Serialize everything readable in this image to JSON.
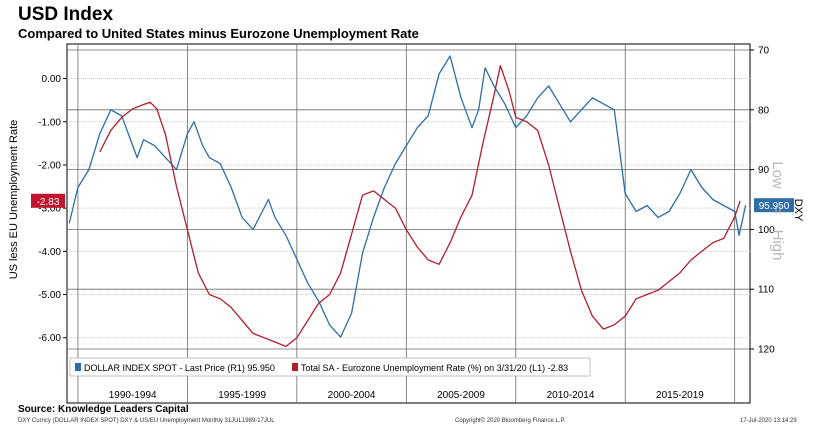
{
  "header": {
    "title": "USD Index",
    "subtitle": "Compared to United States minus Eurozone Unemployment Rate"
  },
  "footer": {
    "source": "Source: Knowledge Leaders Capital",
    "meta_left": "DXY Curncy (DOLLAR INDEX SPOT) DXY & US/EU Unemployment  Monthly 31JUL1989-17JUL",
    "meta_center": "Copyright© 2020 Bloomberg Finance L.P.",
    "meta_right": "17-Jul-2020 13:14:29"
  },
  "chart_data": {
    "type": "line",
    "xlabel": "",
    "x_periods": [
      "1990-1994",
      "1995-1999",
      "2000-2004",
      "2005-2009",
      "2010-2014",
      "2015-2019"
    ],
    "xlim": [
      1989.5,
      2020.7
    ],
    "left_axis": {
      "label": "US less EU Unemployment Rate",
      "ylim": [
        -6.4,
        0.8
      ],
      "ticks": [
        "0.00",
        "-1.00",
        "-2.00",
        "-3.00",
        "-4.00",
        "-5.00",
        "-6.00"
      ],
      "last_value_label": "-2.83",
      "last_value": -2.83,
      "marker_color": "#c0152f"
    },
    "right_axis": {
      "label": "DXY",
      "inverted": true,
      "ylim": [
        69,
        121
      ],
      "ticks": [
        "70",
        "80",
        "90",
        "100",
        "110",
        "120"
      ],
      "last_value_label": "95.950",
      "last_value": 95.95,
      "marker_color": "#2e6ea6",
      "annotation_low": "Low",
      "annotation_high": "High",
      "annotation_separator": "="
    },
    "grid": true,
    "legend_position": "bottom-left",
    "series": [
      {
        "name": "DOLLAR INDEX SPOT - Last Price (R1) 95.950",
        "axis": "right",
        "color": "#2e6ea6",
        "x": [
          1989.6,
          1990.0,
          1990.5,
          1991.0,
          1991.5,
          1992.0,
          1992.7,
          1993.0,
          1993.5,
          1994.0,
          1994.5,
          1995.0,
          1995.3,
          1995.7,
          1996.0,
          1996.5,
          1997.0,
          1997.5,
          1998.0,
          1998.7,
          1999.0,
          1999.5,
          2000.0,
          2000.5,
          2001.0,
          2001.5,
          2002.0,
          2002.5,
          2003.0,
          2003.5,
          2004.0,
          2004.5,
          2005.0,
          2005.5,
          2006.0,
          2006.5,
          2007.0,
          2007.5,
          2008.0,
          2008.3,
          2008.6,
          2009.0,
          2009.5,
          2010.0,
          2010.5,
          2011.0,
          2011.5,
          2012.0,
          2012.5,
          2013.0,
          2013.5,
          2014.0,
          2014.5,
          2015.0,
          2015.5,
          2016.0,
          2016.5,
          2017.0,
          2017.5,
          2018.0,
          2018.5,
          2019.0,
          2019.5,
          2020.0,
          2020.2,
          2020.5
        ],
        "values": [
          99,
          93,
          90,
          84,
          80,
          81,
          88,
          85,
          86,
          88,
          90,
          84,
          82,
          86,
          88,
          89,
          93,
          98,
          100,
          95,
          98,
          101,
          105,
          109,
          112,
          116,
          118,
          114,
          104,
          98,
          93,
          89,
          86,
          83,
          81,
          74,
          71,
          78,
          83,
          80,
          73,
          76,
          79,
          83,
          81,
          78,
          76,
          79,
          82,
          80,
          78,
          79,
          80,
          94,
          97,
          96,
          98,
          97,
          94,
          90,
          93,
          95,
          96,
          97,
          101,
          95.95
        ]
      },
      {
        "name": "Total SA - Eurozone Unemployment Rate (%) on 3/31/20 (L1) -2.83",
        "axis": "left",
        "color": "#b01e2d",
        "x": [
          1991.0,
          1991.5,
          1992.0,
          1992.5,
          1993.0,
          1993.3,
          1993.6,
          1994.0,
          1994.5,
          1995.0,
          1995.5,
          1996.0,
          1996.5,
          1997.0,
          1997.5,
          1998.0,
          1998.5,
          1999.0,
          1999.5,
          2000.0,
          2000.5,
          2001.0,
          2001.5,
          2002.0,
          2002.5,
          2003.0,
          2003.5,
          2004.0,
          2004.5,
          2005.0,
          2005.5,
          2006.0,
          2006.5,
          2007.0,
          2007.5,
          2008.0,
          2008.5,
          2009.0,
          2009.3,
          2009.7,
          2010.0,
          2010.5,
          2011.0,
          2011.5,
          2012.0,
          2012.5,
          2013.0,
          2013.5,
          2014.0,
          2014.5,
          2015.0,
          2015.5,
          2016.0,
          2016.5,
          2017.0,
          2017.5,
          2018.0,
          2018.5,
          2019.0,
          2019.5,
          2020.0,
          2020.25
        ],
        "values": [
          -1.7,
          -1.2,
          -0.9,
          -0.7,
          -0.6,
          -0.55,
          -0.7,
          -1.3,
          -2.5,
          -3.5,
          -4.5,
          -5.0,
          -5.1,
          -5.3,
          -5.6,
          -5.9,
          -6.0,
          -6.1,
          -6.2,
          -6.0,
          -5.6,
          -5.2,
          -5.0,
          -4.5,
          -3.6,
          -2.7,
          -2.6,
          -2.8,
          -3.0,
          -3.5,
          -3.9,
          -4.2,
          -4.3,
          -3.8,
          -3.2,
          -2.7,
          -1.5,
          -0.4,
          0.3,
          -0.3,
          -0.9,
          -1.0,
          -1.2,
          -2.0,
          -3.0,
          -4.0,
          -4.9,
          -5.5,
          -5.8,
          -5.7,
          -5.5,
          -5.1,
          -5.0,
          -4.9,
          -4.7,
          -4.5,
          -4.2,
          -4.0,
          -3.8,
          -3.7,
          -3.2,
          -2.83
        ]
      }
    ]
  }
}
